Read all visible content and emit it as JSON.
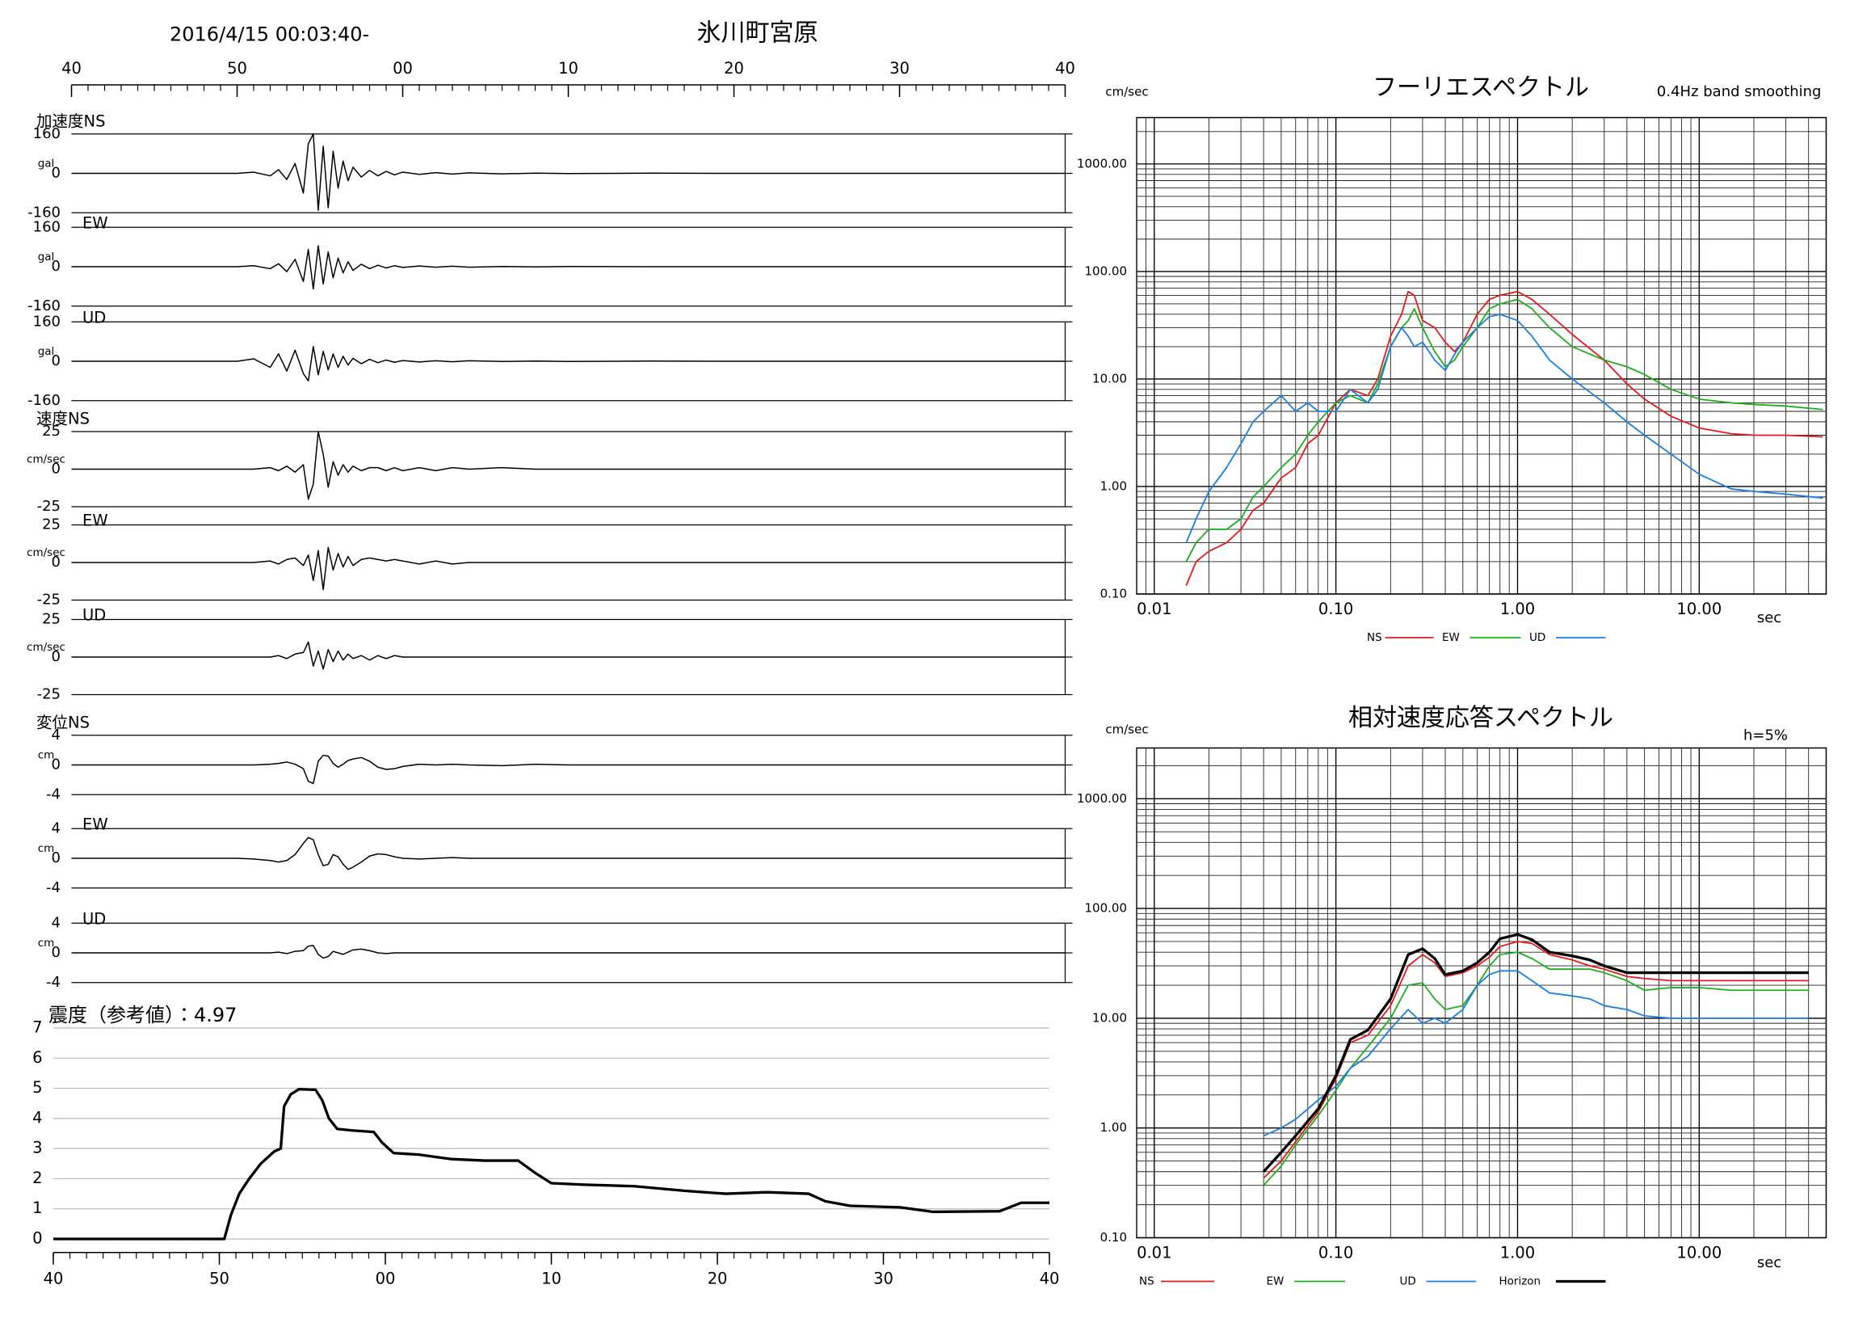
{
  "chart_data": [
    {
      "type": "waveform",
      "title": "氷川町宮原",
      "subtitle": "2016/4/15 00:03:40-",
      "x": [
        0,
        10,
        11,
        12,
        12.5,
        13,
        13.5,
        14,
        14.3,
        14.6,
        14.9,
        15.2,
        15.5,
        15.8,
        16.1,
        16.4,
        16.7,
        17,
        17.5,
        18,
        18.5,
        19,
        19.5,
        20,
        21,
        22,
        23,
        24,
        26,
        28,
        30,
        35,
        40,
        45,
        50,
        55,
        60
      ],
      "xlim": [
        0,
        60
      ],
      "xticks": [
        {
          "value": 0,
          "label": "40"
        },
        {
          "value": 10,
          "label": "50"
        },
        {
          "value": 20,
          "label": "00"
        },
        {
          "value": 30,
          "label": "10"
        },
        {
          "value": 40,
          "label": "20"
        },
        {
          "value": 50,
          "label": "30"
        },
        {
          "value": 60,
          "label": "40"
        }
      ],
      "color": "#000000",
      "panels": [
        {
          "label": "加速度NS",
          "unit": "gal",
          "ylim": [
            -160,
            160
          ],
          "yticks": [
            160,
            0,
            -160
          ],
          "values": [
            0,
            0,
            5,
            -10,
            15,
            -25,
            40,
            -80,
            120,
            160,
            -150,
            110,
            -140,
            90,
            -60,
            50,
            -30,
            25,
            -15,
            12,
            -10,
            8,
            -6,
            5,
            -4,
            3,
            -3,
            2,
            -2,
            1,
            -1,
            1,
            0,
            0,
            0,
            0,
            0
          ]
        },
        {
          "label": "EW",
          "unit": "gal",
          "ylim": [
            -160,
            160
          ],
          "yticks": [
            160,
            0,
            -160
          ],
          "values": [
            0,
            0,
            4,
            -8,
            12,
            -20,
            30,
            -60,
            70,
            -90,
            85,
            -70,
            60,
            -45,
            35,
            -25,
            20,
            -15,
            10,
            -8,
            6,
            -5,
            4,
            -3,
            3,
            -2,
            2,
            -2,
            1,
            -1,
            1,
            0,
            0,
            0,
            0,
            0,
            0
          ]
        },
        {
          "label": "UD",
          "unit": "gal",
          "ylim": [
            -160,
            160
          ],
          "yticks": [
            160,
            0,
            -160
          ],
          "values": [
            0,
            0,
            10,
            -25,
            30,
            -40,
            45,
            -50,
            -80,
            60,
            -55,
            40,
            -35,
            30,
            -25,
            20,
            -15,
            12,
            -10,
            8,
            -6,
            5,
            -4,
            3,
            -3,
            2,
            -2,
            2,
            -1,
            1,
            -1,
            1,
            0,
            0,
            0,
            0,
            0
          ]
        },
        {
          "label": "速度NS",
          "unit": "cm/sec",
          "ylim": [
            -25,
            25
          ],
          "yticks": [
            25,
            0,
            -25
          ],
          "values": [
            0,
            0,
            0,
            1,
            -1,
            2,
            -2,
            3,
            -20,
            -10,
            25,
            10,
            -12,
            5,
            -4,
            3,
            -2,
            2,
            -1,
            1,
            1,
            -1,
            1,
            -1,
            1,
            -1,
            1,
            0,
            1,
            0,
            0,
            0,
            0,
            0,
            0,
            0,
            0
          ]
        },
        {
          "label": "EW",
          "unit": "cm/sec",
          "ylim": [
            -25,
            25
          ],
          "yticks": [
            25,
            0,
            -25
          ],
          "values": [
            0,
            0,
            0,
            1,
            -1,
            2,
            3,
            -2,
            5,
            -12,
            8,
            -18,
            10,
            -5,
            6,
            -3,
            4,
            -2,
            2,
            3,
            2,
            1,
            2,
            1,
            -1,
            1,
            -1,
            0,
            0,
            0,
            0,
            0,
            0,
            0,
            0,
            0,
            0
          ]
        },
        {
          "label": "UD",
          "unit": "cm/sec",
          "ylim": [
            -25,
            25
          ],
          "yticks": [
            25,
            0,
            -25
          ],
          "values": [
            0,
            0,
            0,
            0,
            1,
            -1,
            2,
            3,
            10,
            -6,
            4,
            -8,
            5,
            -3,
            4,
            -2,
            2,
            -1,
            1,
            -2,
            1,
            -1,
            1,
            0,
            0,
            0,
            0,
            0,
            0,
            0,
            0,
            0,
            0,
            0,
            0,
            0,
            0
          ]
        },
        {
          "label": "変位NS",
          "unit": "cm",
          "ylim": [
            -4,
            4
          ],
          "yticks": [
            4,
            0,
            -4
          ],
          "values": [
            0,
            0,
            0,
            0.1,
            0.2,
            0.4,
            0.1,
            -0.5,
            -2.2,
            -2.5,
            0.5,
            1.3,
            1.2,
            0.2,
            -0.3,
            0.1,
            0.6,
            0.8,
            1,
            0.5,
            -0.3,
            -0.6,
            -0.5,
            -0.2,
            0.1,
            0,
            0.1,
            0,
            -0.1,
            0.1,
            0,
            0,
            0,
            0,
            0,
            0,
            0
          ]
        },
        {
          "label": "EW",
          "unit": "cm",
          "ylim": [
            -4,
            4
          ],
          "yticks": [
            4,
            0,
            -4
          ],
          "values": [
            0,
            0,
            -0.1,
            -0.3,
            -0.5,
            -0.3,
            0.5,
            2.0,
            2.8,
            2.5,
            0.5,
            -1.0,
            -0.8,
            0.5,
            0.2,
            -0.8,
            -1.5,
            -1.2,
            -0.5,
            0.3,
            0.6,
            0.5,
            0.2,
            0,
            -0.1,
            0,
            0.1,
            0,
            0,
            0,
            0,
            0,
            0,
            0,
            0,
            0,
            0
          ]
        },
        {
          "label": "UD",
          "unit": "cm",
          "ylim": [
            -4,
            4
          ],
          "yticks": [
            4,
            0,
            -4
          ],
          "values": [
            0,
            0,
            0,
            0,
            0.1,
            -0.1,
            0.2,
            0.3,
            0.9,
            1.0,
            -0.2,
            -0.7,
            -0.5,
            0.2,
            0,
            -0.2,
            0.1,
            0.4,
            0.5,
            0.3,
            0,
            -0.1,
            0,
            0,
            0,
            0,
            0,
            0,
            0,
            0,
            0,
            0,
            0,
            0,
            0,
            0,
            0
          ]
        }
      ]
    },
    {
      "type": "line",
      "title": "震度（参考値）：4.97",
      "x": [
        0,
        10.3,
        10.7,
        11.2,
        11.8,
        12.5,
        13.3,
        13.7,
        13.9,
        14.3,
        14.8,
        15.8,
        16.2,
        16.6,
        17.1,
        18,
        19.3,
        19.8,
        20.5,
        22,
        24,
        26,
        28,
        29,
        30,
        32,
        35,
        38,
        40.5,
        43,
        45.5,
        46.5,
        48,
        51,
        53,
        57,
        58.3,
        60
      ],
      "values": [
        0,
        0,
        0.8,
        1.5,
        2.0,
        2.5,
        2.9,
        3.0,
        4.4,
        4.8,
        4.97,
        4.95,
        4.6,
        4.0,
        3.65,
        3.6,
        3.55,
        3.2,
        2.85,
        2.8,
        2.65,
        2.6,
        2.6,
        2.2,
        1.85,
        1.8,
        1.75,
        1.6,
        1.5,
        1.55,
        1.5,
        1.25,
        1.1,
        1.05,
        0.9,
        0.92,
        1.2,
        1.2
      ],
      "color": "#000000",
      "xlim": [
        0,
        60
      ],
      "xticks": [
        {
          "value": 0,
          "label": "40"
        },
        {
          "value": 10,
          "label": "50"
        },
        {
          "value": 20,
          "label": "00"
        },
        {
          "value": 30,
          "label": "10"
        },
        {
          "value": 40,
          "label": "20"
        },
        {
          "value": 50,
          "label": "30"
        },
        {
          "value": 60,
          "label": "40"
        }
      ],
      "ylim": [
        -0.45,
        7
      ],
      "yticks": [
        0,
        1,
        2,
        3,
        4,
        5,
        6,
        7
      ],
      "grid": true
    },
    {
      "type": "loglog",
      "title": "フーリエスペクトル",
      "subtitle": "0.4Hz band smoothing",
      "ylabel": "cm/sec",
      "xlabel": "sec",
      "x": [
        0.015,
        0.017,
        0.02,
        0.025,
        0.03,
        0.035,
        0.04,
        0.05,
        0.06,
        0.07,
        0.08,
        0.1,
        0.12,
        0.15,
        0.17,
        0.2,
        0.23,
        0.25,
        0.27,
        0.3,
        0.35,
        0.4,
        0.45,
        0.5,
        0.6,
        0.7,
        0.8,
        1.0,
        1.2,
        1.5,
        2,
        3,
        4,
        5,
        7,
        10,
        15,
        20,
        30,
        48
      ],
      "series": [
        {
          "name": "NS",
          "color": "#e41a1c",
          "values": [
            0.12,
            0.2,
            0.25,
            0.3,
            0.4,
            0.6,
            0.7,
            1.2,
            1.5,
            2.5,
            3,
            6,
            8,
            7,
            10,
            25,
            40,
            65,
            60,
            35,
            30,
            22,
            18,
            22,
            40,
            55,
            60,
            65,
            55,
            40,
            26,
            15,
            9,
            6.5,
            4.5,
            3.5,
            3.1,
            3,
            3,
            2.9
          ]
        },
        {
          "name": "EW",
          "color": "#1fae1f",
          "values": [
            0.2,
            0.3,
            0.4,
            0.4,
            0.5,
            0.8,
            1.0,
            1.5,
            2.0,
            3,
            4,
            6,
            7,
            6,
            9,
            20,
            30,
            35,
            45,
            30,
            18,
            13,
            15,
            20,
            30,
            45,
            50,
            55,
            45,
            30,
            20,
            15,
            13,
            11,
            8,
            6.5,
            6,
            5.8,
            5.6,
            5.2
          ]
        },
        {
          "name": "UD",
          "color": "#1a7fe0",
          "values": [
            0.3,
            0.5,
            0.9,
            1.5,
            2.5,
            4,
            5,
            7,
            5,
            6,
            5,
            5,
            8,
            6,
            8,
            20,
            30,
            25,
            20,
            22,
            15,
            12,
            17,
            22,
            30,
            38,
            40,
            35,
            25,
            15,
            10,
            6,
            4,
            3,
            2,
            1.3,
            0.95,
            0.9,
            0.85,
            0.78
          ]
        }
      ],
      "xlim": [
        0.008,
        50
      ],
      "ylim": [
        0.1,
        2700
      ],
      "xticks": [
        0.01,
        {
          "value": 0.1,
          "label": "0.10"
        },
        {
          "value": 1,
          "label": "1.00"
        },
        {
          "value": 10,
          "label": "10.00"
        }
      ],
      "yticks": [
        {
          "value": 0.1,
          "label": "0.10"
        },
        {
          "value": 1,
          "label": "1.00"
        },
        {
          "value": 10,
          "label": "10.00"
        },
        {
          "value": 100,
          "label": "100.00"
        },
        {
          "value": 1000,
          "label": "1000.00"
        }
      ],
      "xminor": [
        0.008,
        0.009,
        0.02,
        0.03,
        0.04,
        0.05,
        0.06,
        0.07,
        0.08,
        0.09,
        0.2,
        0.3,
        0.4,
        0.5,
        0.6,
        0.7,
        0.8,
        0.9,
        2,
        3,
        4,
        5,
        6,
        7,
        8,
        9,
        20,
        30,
        40
      ],
      "yminor": [
        0.2,
        0.3,
        0.4,
        0.5,
        0.6,
        0.7,
        0.8,
        0.9,
        2,
        3,
        4,
        5,
        6,
        7,
        8,
        9,
        20,
        30,
        40,
        50,
        60,
        70,
        80,
        90,
        200,
        300,
        400,
        500,
        600,
        700,
        800,
        900,
        2000
      ],
      "log": true,
      "grid": true,
      "legend": "bottom"
    },
    {
      "type": "loglog",
      "title": "相対速度応答スペクトル",
      "subtitle": "h=5%",
      "ylabel": "cm/sec",
      "xlabel": "sec",
      "x": [
        0.04,
        0.05,
        0.06,
        0.08,
        0.1,
        0.12,
        0.15,
        0.2,
        0.25,
        0.3,
        0.35,
        0.4,
        0.5,
        0.6,
        0.7,
        0.8,
        1.0,
        1.2,
        1.5,
        2,
        2.5,
        3,
        4,
        5,
        7,
        10,
        15,
        20,
        30,
        40
      ],
      "series": [
        {
          "name": "NS",
          "color": "#e41a1c",
          "values": [
            0.35,
            0.5,
            0.75,
            1.4,
            2.8,
            6,
            7,
            13,
            30,
            38,
            32,
            24,
            26,
            30,
            36,
            45,
            50,
            48,
            38,
            34,
            30,
            28,
            24,
            23,
            22,
            22,
            22,
            22,
            22,
            22
          ]
        },
        {
          "name": "EW",
          "color": "#1fae1f",
          "values": [
            0.3,
            0.45,
            0.7,
            1.3,
            2.2,
            3.5,
            5.5,
            10,
            20,
            21,
            15,
            12,
            13,
            20,
            30,
            38,
            40,
            35,
            28,
            28,
            28,
            26,
            22,
            18,
            19,
            19,
            18,
            18,
            18,
            18
          ]
        },
        {
          "name": "UD",
          "color": "#1a7fe0",
          "values": [
            0.85,
            1.0,
            1.2,
            1.8,
            2.4,
            3.5,
            4.5,
            8,
            12,
            9,
            10,
            9,
            12,
            20,
            25,
            27,
            27,
            22,
            17,
            16,
            15,
            13,
            12,
            10.5,
            10,
            10,
            10,
            10,
            10,
            10
          ]
        },
        {
          "name": "Horizon",
          "color": "#000000",
          "values": [
            0.4,
            0.6,
            0.85,
            1.5,
            3,
            6.4,
            7.8,
            15,
            38,
            43,
            35,
            25,
            27,
            32,
            40,
            53,
            58,
            52,
            40,
            37,
            34,
            30,
            26,
            26,
            26,
            26,
            26,
            26,
            26,
            26
          ]
        }
      ],
      "xlim": [
        0.008,
        50
      ],
      "ylim": [
        0.1,
        2900
      ],
      "xticks": [
        0.01,
        {
          "value": 0.1,
          "label": "0.10"
        },
        {
          "value": 1,
          "label": "1.00"
        },
        {
          "value": 10,
          "label": "10.00"
        }
      ],
      "yticks": [
        {
          "value": 0.1,
          "label": "0.10"
        },
        {
          "value": 1,
          "label": "1.00"
        },
        {
          "value": 10,
          "label": "10.00"
        },
        {
          "value": 100,
          "label": "100.00"
        },
        {
          "value": 1000,
          "label": "1000.00"
        }
      ],
      "xminor": [
        0.008,
        0.009,
        0.02,
        0.03,
        0.04,
        0.05,
        0.06,
        0.07,
        0.08,
        0.09,
        0.2,
        0.3,
        0.4,
        0.5,
        0.6,
        0.7,
        0.8,
        0.9,
        2,
        3,
        4,
        5,
        6,
        7,
        8,
        9,
        20,
        30,
        40
      ],
      "yminor": [
        0.2,
        0.3,
        0.4,
        0.5,
        0.6,
        0.7,
        0.8,
        0.9,
        2,
        3,
        4,
        5,
        6,
        7,
        8,
        9,
        20,
        30,
        40,
        50,
        60,
        70,
        80,
        90,
        200,
        300,
        400,
        500,
        600,
        700,
        800,
        900,
        2000
      ],
      "log": true,
      "grid": true,
      "legend": "bottom"
    }
  ]
}
